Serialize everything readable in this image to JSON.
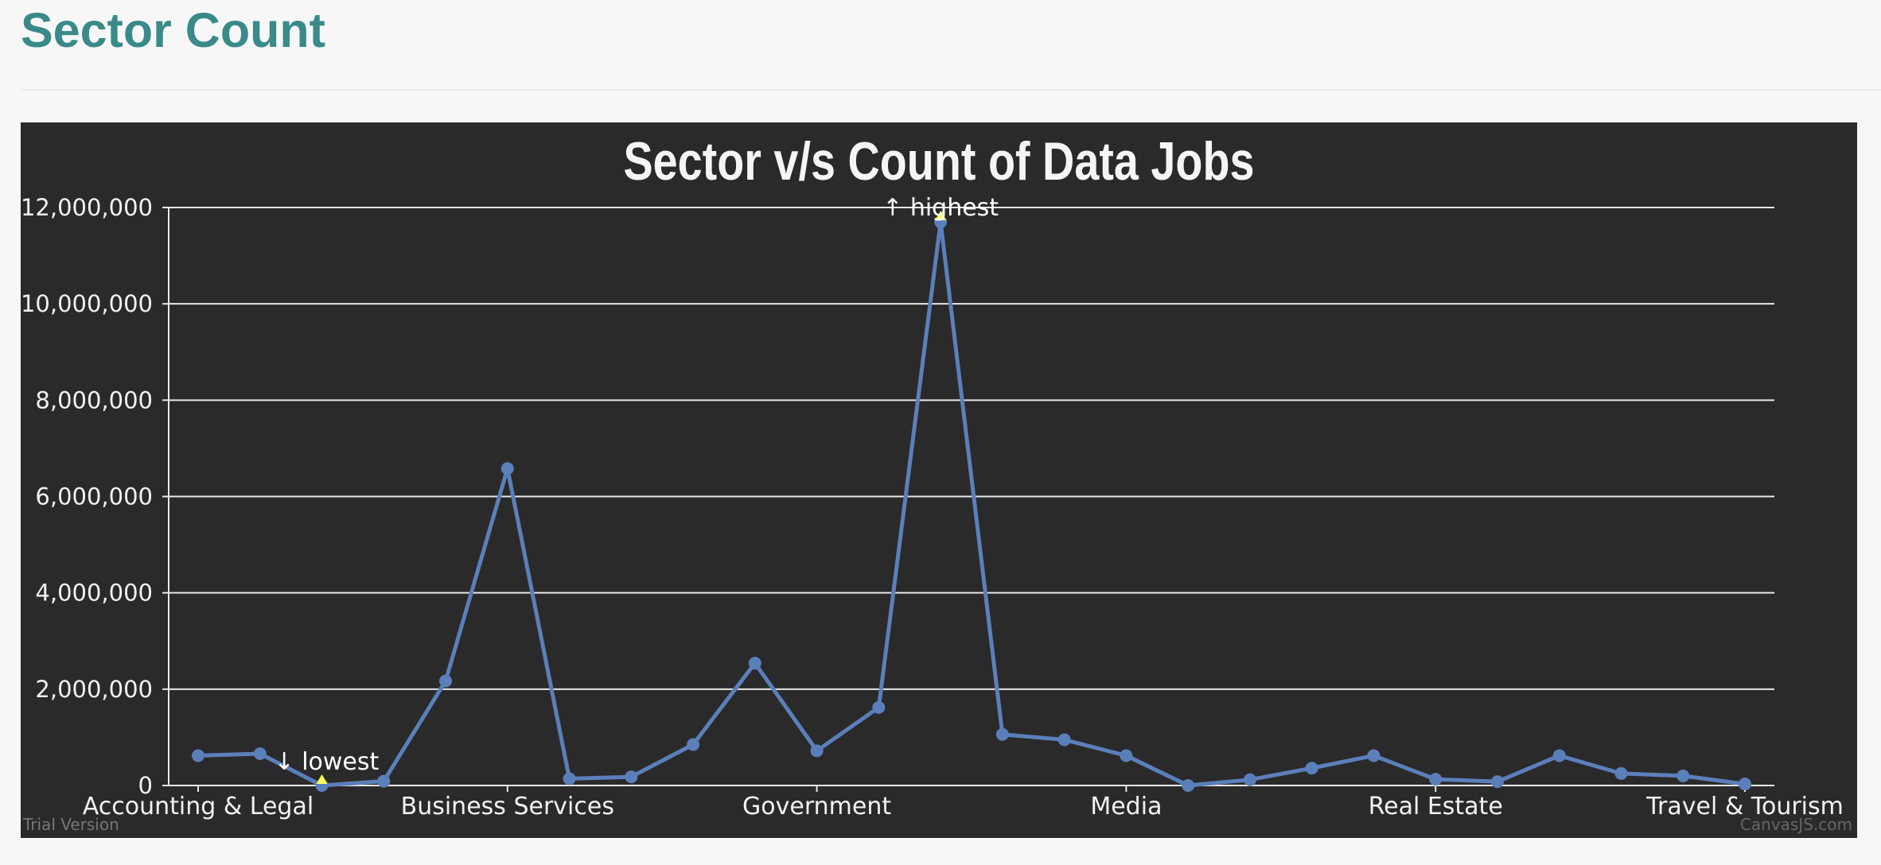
{
  "page": {
    "title": "Sector Count"
  },
  "chart_data": {
    "type": "line",
    "title": "Sector v/s Count of Data Jobs",
    "xlabel": "",
    "ylabel": "",
    "ylim": [
      0,
      12000000
    ],
    "y_ticks": [
      0,
      2000000,
      4000000,
      6000000,
      8000000,
      10000000,
      12000000
    ],
    "y_tick_labels": [
      "0",
      "2,000,000",
      "4,000,000",
      "6,000,000",
      "8,000,000",
      "10,000,000",
      "12,000,000"
    ],
    "x_tick_labels": [
      "Accounting & Legal",
      "Business Services",
      "Government",
      "Media",
      "Real Estate",
      "Travel & Tourism"
    ],
    "x_tick_indices": [
      0,
      5,
      10,
      15,
      20,
      25
    ],
    "grid": true,
    "series": [
      {
        "color": "#5b7fba",
        "values": [
          620000,
          660000,
          0,
          90000,
          2170000,
          6580000,
          140000,
          180000,
          850000,
          2540000,
          720000,
          1620000,
          11700000,
          1060000,
          950000,
          620000,
          0,
          120000,
          360000,
          620000,
          130000,
          80000,
          620000,
          250000,
          200000,
          30000
        ]
      }
    ],
    "annotations": [
      {
        "text": "↓ lowest",
        "index": 2,
        "marker_color": "#ffff55"
      },
      {
        "text": "↑ highest",
        "index": 12,
        "marker_color": "#ffff55"
      }
    ],
    "credits": {
      "trial": "Trial Version",
      "brand": "CanvasJS.com"
    }
  }
}
